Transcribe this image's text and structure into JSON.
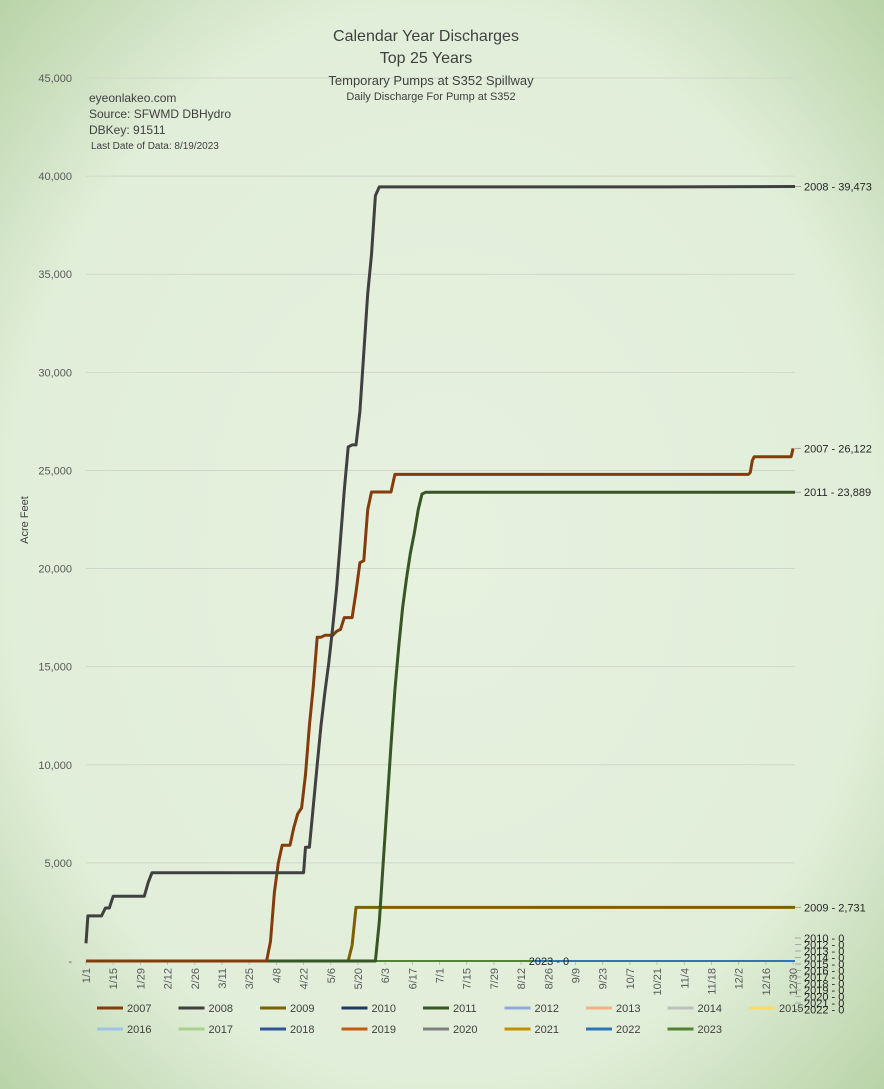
{
  "chart_data": {
    "type": "line",
    "title": "Calendar Year Discharges",
    "subtitle": "Top 25 Years",
    "subtitle2": "Temporary Pumps at S352 Spillway",
    "subtitle3": "Daily Discharge For Pump at S352",
    "info": {
      "site": "eyeonlakeo.com",
      "source": "Source: SFWMD DBHydro",
      "dbkey": "DBKey: 91511",
      "last_date": "Last Date of Data: 8/19/2023"
    },
    "ylabel": "Acre Feet",
    "xlabel": "",
    "ylim": [
      0,
      45000
    ],
    "xlim": [
      1,
      366
    ],
    "y_ticks": [
      {
        "value": 0,
        "label": "-"
      },
      {
        "value": 5000,
        "label": "5,000"
      },
      {
        "value": 10000,
        "label": "10,000"
      },
      {
        "value": 15000,
        "label": "15,000"
      },
      {
        "value": 20000,
        "label": "20,000"
      },
      {
        "value": 25000,
        "label": "25,000"
      },
      {
        "value": 30000,
        "label": "30,000"
      },
      {
        "value": 35000,
        "label": "35,000"
      },
      {
        "value": 40000,
        "label": "40,000"
      },
      {
        "value": 45000,
        "label": "45,000"
      }
    ],
    "x_ticks": [
      {
        "label": "1/1",
        "day": 1
      },
      {
        "label": "1/15",
        "day": 15
      },
      {
        "label": "1/29",
        "day": 29
      },
      {
        "label": "2/12",
        "day": 43
      },
      {
        "label": "2/26",
        "day": 57
      },
      {
        "label": "3/11",
        "day": 71
      },
      {
        "label": "3/25",
        "day": 85
      },
      {
        "label": "4/8",
        "day": 99
      },
      {
        "label": "4/22",
        "day": 113
      },
      {
        "label": "5/6",
        "day": 127
      },
      {
        "label": "5/20",
        "day": 141
      },
      {
        "label": "6/3",
        "day": 155
      },
      {
        "label": "6/17",
        "day": 169
      },
      {
        "label": "7/1",
        "day": 183
      },
      {
        "label": "7/15",
        "day": 197
      },
      {
        "label": "7/29",
        "day": 211
      },
      {
        "label": "8/12",
        "day": 225
      },
      {
        "label": "8/26",
        "day": 239
      },
      {
        "label": "9/9",
        "day": 253
      },
      {
        "label": "9/23",
        "day": 267
      },
      {
        "label": "10/7",
        "day": 281
      },
      {
        "label": "10/21",
        "day": 295
      },
      {
        "label": "11/4",
        "day": 309
      },
      {
        "label": "11/18",
        "day": 323
      },
      {
        "label": "12/2",
        "day": 337
      },
      {
        "label": "12/16",
        "day": 351
      },
      {
        "label": "12/30",
        "day": 365
      }
    ],
    "grid": true,
    "legend_position": "bottom",
    "series": [
      {
        "name": "2007",
        "color": "#843c0c",
        "width": 3,
        "x": [
          1,
          94,
          96,
          98,
          100,
          102,
          104,
          106,
          108,
          110,
          112,
          114,
          116,
          118,
          120,
          122,
          124,
          126,
          128,
          130,
          132,
          134,
          136,
          138,
          140,
          142,
          144,
          146,
          148,
          150,
          152,
          154,
          156,
          158,
          160,
          162,
          164,
          166,
          168,
          170,
          180,
          200,
          250,
          300,
          330,
          340,
          341,
          342,
          343,
          344,
          345,
          346,
          360,
          364,
          365
        ],
        "y": [
          0,
          0,
          1000,
          3500,
          5000,
          5900,
          5900,
          5900,
          6800,
          7500,
          7800,
          9500,
          12000,
          14000,
          16500,
          16500,
          16600,
          16600,
          16600,
          16800,
          16900,
          17500,
          17500,
          17500,
          18800,
          20300,
          20400,
          23000,
          23900,
          23900,
          23900,
          23900,
          23900,
          23900,
          24800,
          24800,
          24800,
          24800,
          24800,
          24800,
          24800,
          24800,
          24800,
          24800,
          24800,
          24800,
          24800,
          24800,
          24900,
          25500,
          25700,
          25700,
          25700,
          25700,
          26122
        ]
      },
      {
        "name": "2008",
        "color": "#404040",
        "width": 3,
        "x": [
          1,
          2,
          3,
          5,
          7,
          9,
          11,
          13,
          15,
          17,
          19,
          21,
          23,
          25,
          27,
          29,
          31,
          33,
          35,
          37,
          40,
          45,
          60,
          80,
          100,
          112,
          113,
          114,
          116,
          118,
          120,
          122,
          124,
          126,
          128,
          130,
          132,
          134,
          136,
          138,
          140,
          142,
          144,
          146,
          148,
          150,
          152,
          154,
          156,
          158,
          160,
          162,
          170,
          200,
          300,
          366
        ],
        "y": [
          900,
          2300,
          2300,
          2300,
          2300,
          2300,
          2700,
          2700,
          3300,
          3300,
          3300,
          3300,
          3300,
          3300,
          3300,
          3300,
          3300,
          4000,
          4500,
          4500,
          4500,
          4500,
          4500,
          4500,
          4500,
          4500,
          4500,
          5800,
          5800,
          7900,
          10000,
          12000,
          13700,
          15200,
          17000,
          19000,
          21500,
          24000,
          26200,
          26300,
          26300,
          28000,
          31000,
          34000,
          36000,
          39000,
          39450,
          39450,
          39450,
          39450,
          39450,
          39450,
          39450,
          39450,
          39450,
          39473
        ]
      },
      {
        "name": "2009",
        "color": "#7f6000",
        "width": 3,
        "x": [
          1,
          136,
          138,
          140,
          142,
          366
        ],
        "y": [
          0,
          0,
          800,
          2731,
          2731,
          2731
        ]
      },
      {
        "name": "2010",
        "color": "#1f3864",
        "width": 2,
        "x": [
          1,
          366
        ],
        "y": [
          0,
          0
        ]
      },
      {
        "name": "2011",
        "color": "#375623",
        "width": 3,
        "x": [
          1,
          150,
          152,
          154,
          156,
          158,
          160,
          162,
          164,
          166,
          168,
          170,
          172,
          174,
          176,
          178,
          180,
          182,
          250,
          366
        ],
        "y": [
          0,
          0,
          2000,
          5000,
          8000,
          11000,
          13800,
          16000,
          18000,
          19500,
          20800,
          21800,
          23000,
          23800,
          23889,
          23889,
          23889,
          23889,
          23889,
          23889
        ]
      },
      {
        "name": "2012",
        "color": "#8faadc",
        "width": 2,
        "x": [
          1,
          366
        ],
        "y": [
          0,
          0
        ]
      },
      {
        "name": "2013",
        "color": "#f4b183",
        "width": 2,
        "x": [
          1,
          366
        ],
        "y": [
          0,
          0
        ]
      },
      {
        "name": "2014",
        "color": "#bfbfbf",
        "width": 2,
        "x": [
          1,
          366
        ],
        "y": [
          0,
          0
        ]
      },
      {
        "name": "2015",
        "color": "#ffd966",
        "width": 2,
        "x": [
          1,
          366
        ],
        "y": [
          0,
          0
        ]
      },
      {
        "name": "2016",
        "color": "#9dc3e6",
        "width": 2,
        "x": [
          1,
          366
        ],
        "y": [
          0,
          0
        ]
      },
      {
        "name": "2017",
        "color": "#a9d18e",
        "width": 2,
        "x": [
          1,
          366
        ],
        "y": [
          0,
          0
        ]
      },
      {
        "name": "2018",
        "color": "#2f5597",
        "width": 2,
        "x": [
          1,
          366
        ],
        "y": [
          0,
          0
        ]
      },
      {
        "name": "2019",
        "color": "#c55a11",
        "width": 2,
        "x": [
          1,
          366
        ],
        "y": [
          0,
          0
        ]
      },
      {
        "name": "2020",
        "color": "#7f7f7f",
        "width": 2,
        "x": [
          1,
          366
        ],
        "y": [
          0,
          0
        ]
      },
      {
        "name": "2021",
        "color": "#bf9000",
        "width": 2,
        "x": [
          1,
          366
        ],
        "y": [
          0,
          0
        ]
      },
      {
        "name": "2022",
        "color": "#2e75b6",
        "width": 2,
        "x": [
          1,
          366
        ],
        "y": [
          0,
          0
        ]
      },
      {
        "name": "2023",
        "color": "#548235",
        "width": 2,
        "x": [
          1,
          231
        ],
        "y": [
          0,
          0
        ]
      }
    ],
    "end_labels": [
      {
        "text": "2008 - 39,473",
        "value": 39473
      },
      {
        "text": "2007 - 26,122",
        "value": 26122
      },
      {
        "text": "2011 - 23,889",
        "value": 23889
      },
      {
        "text": "2009 - 2,731",
        "value": 2731
      },
      {
        "text": "2010 - 0",
        "value": 0
      },
      {
        "text": "2012 - 0",
        "value": 0
      },
      {
        "text": "2013 - 0",
        "value": 0
      },
      {
        "text": "2014 - 0",
        "value": 0
      },
      {
        "text": "2015 - 0",
        "value": 0
      },
      {
        "text": "2016 - 0",
        "value": 0
      },
      {
        "text": "2017 - 0",
        "value": 0
      },
      {
        "text": "2018 - 0",
        "value": 0
      },
      {
        "text": "2019 - 0",
        "value": 0
      },
      {
        "text": "2020 - 0",
        "value": 0
      },
      {
        "text": "2021 - 0",
        "value": 0
      },
      {
        "text": "2022 - 0",
        "value": 0
      }
    ],
    "inline_label": {
      "text": "2023 - 0",
      "day": 231,
      "value": 0
    },
    "legend_rows": [
      [
        "2007",
        "2008",
        "2009",
        "2010",
        "2011",
        "2012",
        "2013",
        "2014",
        "2015"
      ],
      [
        "2016",
        "2017",
        "2018",
        "2019",
        "2020",
        "2021",
        "2022",
        "2023"
      ]
    ]
  }
}
